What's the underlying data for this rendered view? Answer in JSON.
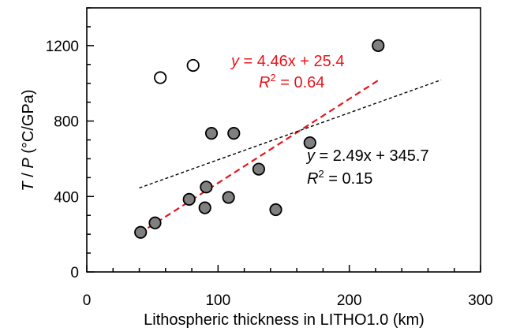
{
  "chart_data": {
    "type": "scatter",
    "xlabel": "Lithospheric thickness in LITHO1.0 (km)",
    "ylabel": {
      "var1": "T",
      "sep": " / ",
      "var2": "P",
      "unit": " (°C/GPa)"
    },
    "xlim": [
      0,
      300
    ],
    "ylim": [
      0,
      1400
    ],
    "xticks": [
      0,
      100,
      200,
      300
    ],
    "yticks": [
      0,
      400,
      800,
      1200
    ],
    "grid": false,
    "series": [
      {
        "marker": "filled",
        "fill": "#808080",
        "points": [
          {
            "x": 41,
            "y": 210
          },
          {
            "x": 52,
            "y": 260
          },
          {
            "x": 78,
            "y": 385
          },
          {
            "x": 90,
            "y": 340
          },
          {
            "x": 91,
            "y": 450
          },
          {
            "x": 95,
            "y": 735
          },
          {
            "x": 108,
            "y": 395
          },
          {
            "x": 112,
            "y": 735
          },
          {
            "x": 131,
            "y": 545
          },
          {
            "x": 144,
            "y": 330
          },
          {
            "x": 170,
            "y": 685
          },
          {
            "x": 222,
            "y": 1200
          }
        ]
      },
      {
        "marker": "open",
        "fill": "#ffffff",
        "points": [
          {
            "x": 56,
            "y": 1030
          },
          {
            "x": 81,
            "y": 1095
          }
        ]
      }
    ],
    "fits": [
      {
        "color": "#e8141b",
        "slope": 4.46,
        "intercept": 25.4,
        "x_range": [
          40,
          222
        ],
        "equation": {
          "y": "y",
          "rhs": " = 4.46x + 25.4"
        },
        "r2": {
          "r": "R",
          "sup": "2",
          "rhs": " = 0.64"
        }
      },
      {
        "color": "#000000",
        "slope": 2.49,
        "intercept": 345.7,
        "x_range": [
          40,
          270
        ],
        "equation": {
          "y": "y",
          "rhs": " = 2.49x + 345.7"
        },
        "r2": {
          "r": "R",
          "sup": "2",
          "rhs": " = 0.15"
        }
      }
    ]
  }
}
